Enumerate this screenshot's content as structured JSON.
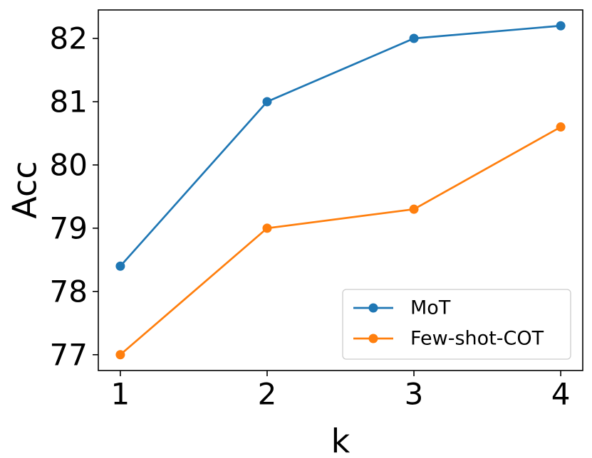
{
  "chart_data": {
    "type": "line",
    "xlabel": "k",
    "ylabel": "Acc",
    "x": [
      1,
      2,
      3,
      4
    ],
    "xticks": [
      "1",
      "2",
      "3",
      "4"
    ],
    "yticks": [
      "77",
      "78",
      "79",
      "80",
      "81",
      "82"
    ],
    "ylim": [
      76.75,
      82.45
    ],
    "xlim": [
      0.85,
      4.15
    ],
    "grid": false,
    "legend_position": "lower-right",
    "series": [
      {
        "name": "MoT",
        "color": "#1f77b4",
        "values": [
          78.4,
          81.0,
          82.0,
          82.2
        ]
      },
      {
        "name": "Few-shot-COT",
        "color": "#ff7f0e",
        "values": [
          77.0,
          79.0,
          79.3,
          80.6
        ]
      }
    ]
  }
}
